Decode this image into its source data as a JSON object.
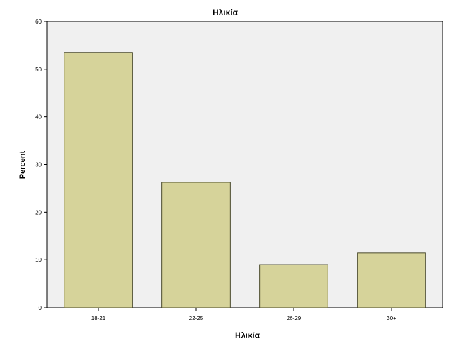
{
  "chart_data": {
    "type": "bar",
    "title": "Ηλικία",
    "xlabel": "Ηλικία",
    "ylabel": "Percent",
    "categories": [
      "18-21",
      "22-25",
      "26-29",
      "30+"
    ],
    "values": [
      53.5,
      26.3,
      9.0,
      11.5
    ],
    "ylim": [
      0,
      60
    ],
    "yticks": [
      0,
      10,
      20,
      30,
      40,
      50,
      60
    ],
    "grid": false,
    "legend": "none",
    "colors": {
      "background": "#ffffff",
      "plot_background": "#f0f0f0",
      "bar_fill": "#d6d39a",
      "bar_stroke": "#4a4a2a",
      "axis": "#000000",
      "text": "#000000"
    }
  }
}
